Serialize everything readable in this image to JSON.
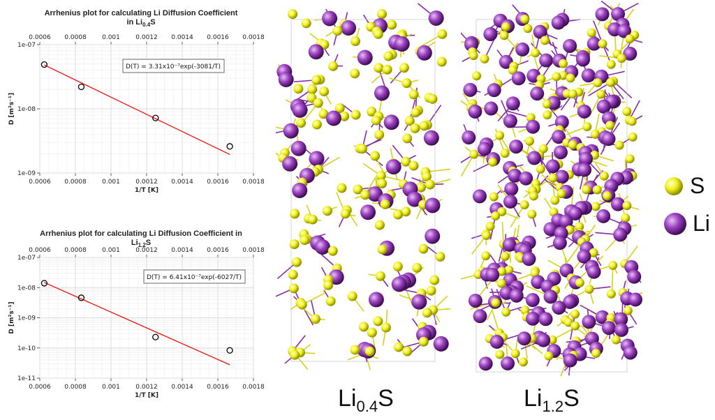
{
  "colors": {
    "sulfur": "#f2f21e",
    "lithium": "#9b3fbf",
    "fit_line": "#e8231c",
    "bond_s": "#d6d21a",
    "bond_li": "#8a2aa8"
  },
  "chart_data": [
    {
      "type": "scatter",
      "title_main": "Arrhenius plot for calculating Li Diffusion Coefficient",
      "title_formula": "Li",
      "title_sub": "0.4",
      "title_tail": "S",
      "xlabel": "1/T [K]",
      "ylabel": "D [m²s⁻¹]",
      "xlim": [
        0.0006,
        0.0018
      ],
      "ylog": true,
      "ylim": [
        1e-09,
        1e-07
      ],
      "xticks": [
        "0.0006",
        "0.0008",
        "0.001",
        "0.0012",
        "0.0014",
        "0.0016",
        "0.0018"
      ],
      "yticks": [
        "1e-07",
        "1e-08",
        "1e-09"
      ],
      "points": [
        {
          "x": 0.000625,
          "y": 4.9e-08
        },
        {
          "x": 0.000833,
          "y": 2.2e-08
        },
        {
          "x": 0.00125,
          "y": 7.2e-09
        },
        {
          "x": 0.001667,
          "y": 2.6e-09
        }
      ],
      "fit": {
        "prefactor": 3.31e-07,
        "Ea": 3081
      },
      "annotation": "D(T) = 3.31x10⁻⁷exp(-3081/T)",
      "grid": true
    },
    {
      "type": "scatter",
      "title_main": "Arrhenius plot for calculating Li Diffusion Coefficient in",
      "title_formula": "Li",
      "title_sub": "1.2",
      "title_tail": "S",
      "xlabel": "1/T [K]",
      "ylabel": "D [m²s⁻¹]",
      "xlim": [
        0.0006,
        0.0018
      ],
      "ylog": true,
      "ylim": [
        1e-11,
        1e-07
      ],
      "xticks": [
        "0.0006",
        "0.0008",
        "0.001",
        "0.0012",
        "0.0014",
        "0.0016",
        "0.0018"
      ],
      "yticks": [
        "1e-07",
        "1e-08",
        "1e-09",
        "1e-10",
        "1e-11"
      ],
      "points": [
        {
          "x": 0.000625,
          "y": 1.4e-08
        },
        {
          "x": 0.000833,
          "y": 4.6e-09
        },
        {
          "x": 0.00125,
          "y": 2.3e-10
        },
        {
          "x": 0.001667,
          "y": 8.3e-11
        }
      ],
      "fit": {
        "prefactor": 6.41e-07,
        "Ea": 6027
      },
      "annotation": "D(T) = 6.41x10⁻⁷exp(-6027/T)",
      "grid": true
    }
  ],
  "captions": [
    {
      "formula": "Li",
      "sub": "0.4",
      "tail": "S"
    },
    {
      "formula": "Li",
      "sub": "1.2",
      "tail": "S"
    }
  ],
  "legend": [
    {
      "label": "S",
      "color": "#f2f21e"
    },
    {
      "label": "Li",
      "color": "#9b3fbf"
    }
  ]
}
